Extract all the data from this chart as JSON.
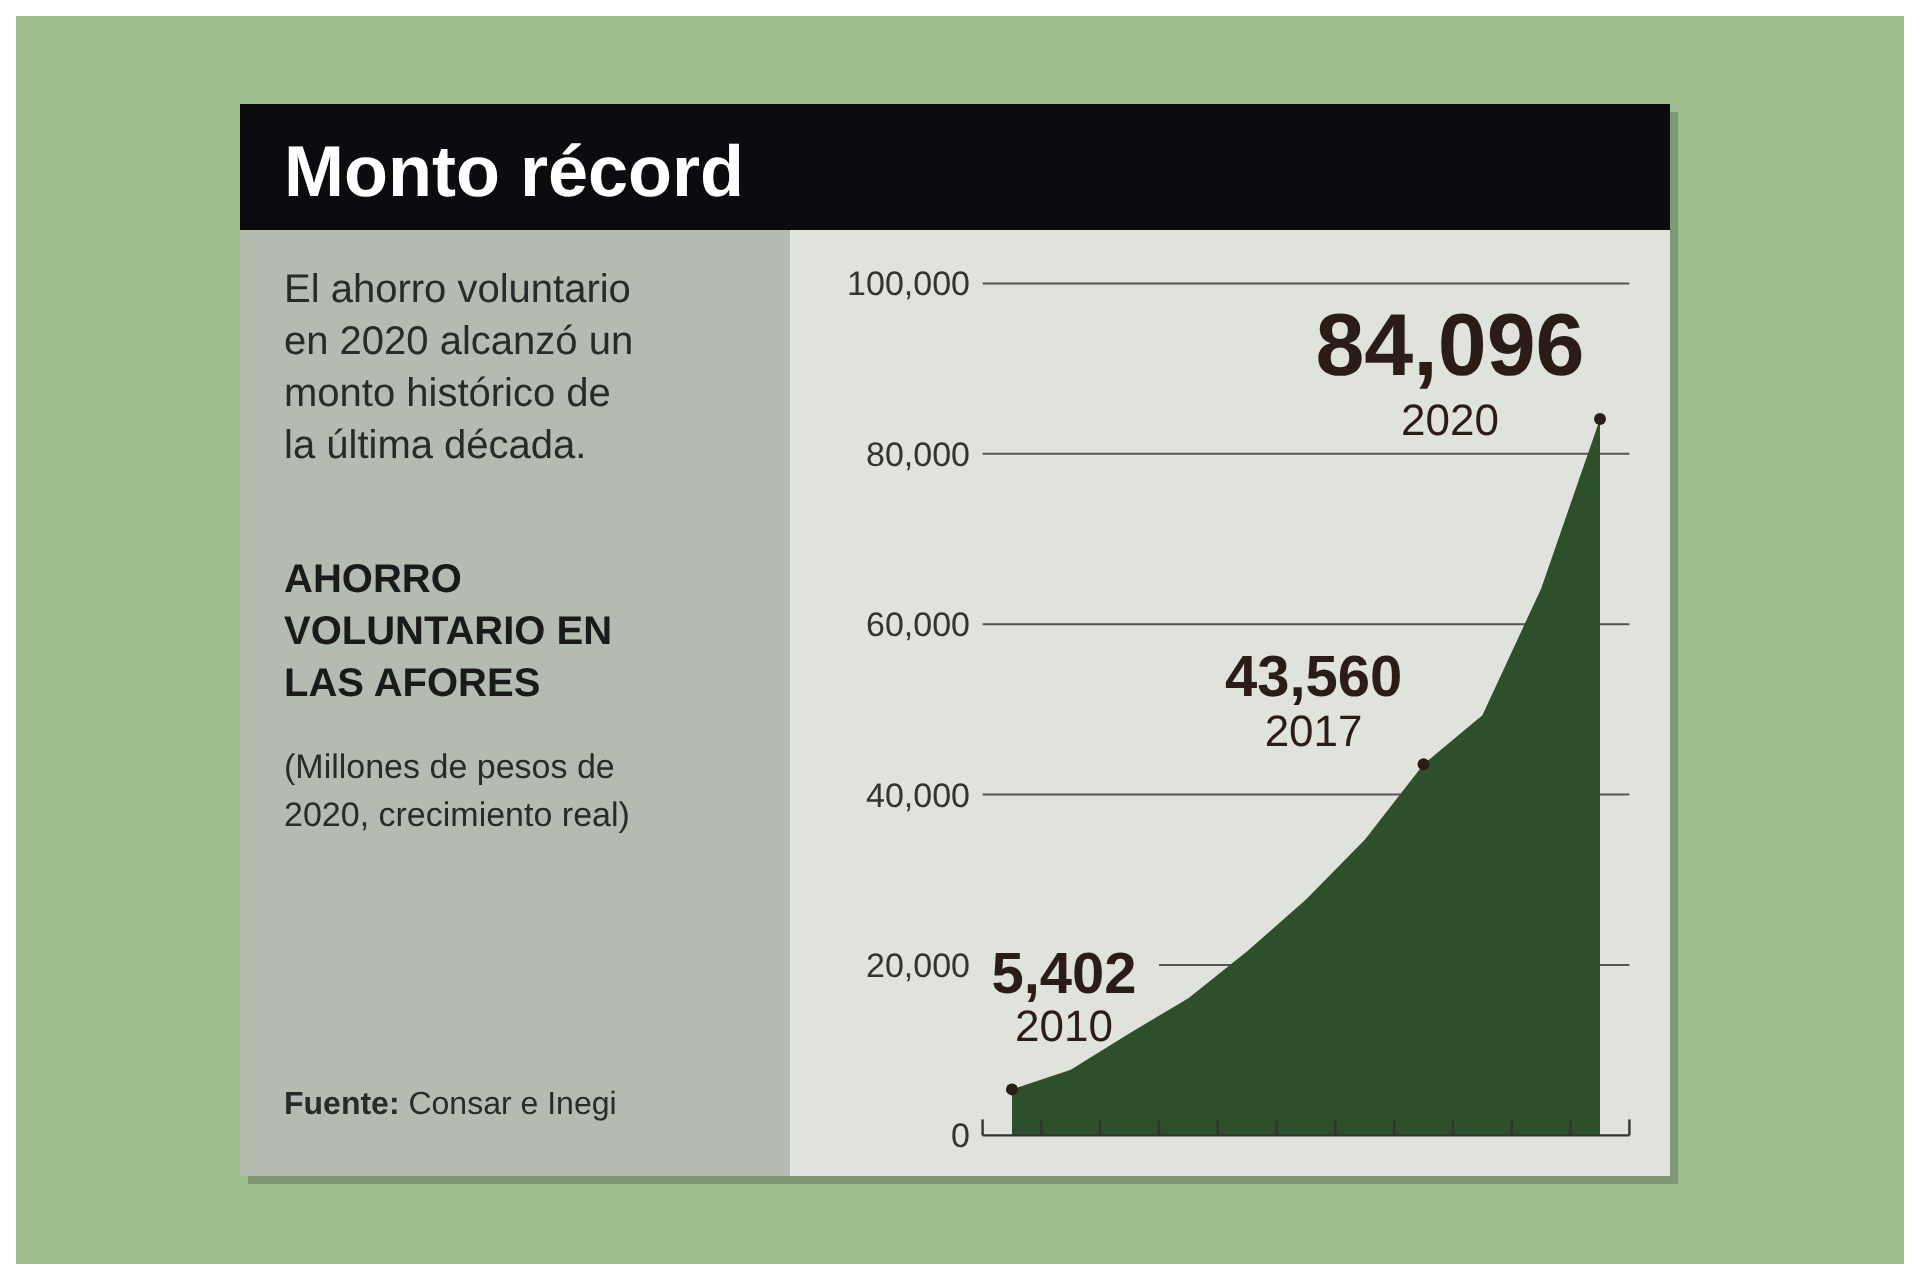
{
  "chart_data": {
    "type": "area",
    "title": "Monto récord",
    "subtitle": "El ahorro voluntario en 2020 alcanzó un monto histórico de la última década.",
    "annotations": [
      "AHORRO VOLUNTARIO EN LAS AFORES",
      "(Millones de pesos de 2020, crecimiento real)",
      "Fuente: Consar e Inegi",
      "2010",
      "2017",
      "2020"
    ],
    "categories": [
      null,
      null,
      null,
      null,
      null,
      null,
      null,
      null,
      null,
      null,
      null
    ],
    "series": [
      {
        "color": "#2d4f2a",
        "values": [
          5402,
          7700,
          12000,
          16100,
          21600,
          27700,
          34700,
          43560,
          49300,
          64200,
          84096
        ],
        "value_labels": [
          "5,402",
          null,
          null,
          null,
          null,
          null,
          null,
          "43,560",
          null,
          null,
          "84,096"
        ]
      }
    ],
    "ylim": [
      0,
      100000
    ],
    "yticks": [
      {
        "value": 0,
        "label": "0"
      },
      {
        "value": 20000,
        "label": "20,000"
      },
      {
        "value": 40000,
        "label": "40,000"
      },
      {
        "value": 60000,
        "label": "60,000"
      },
      {
        "value": 80000,
        "label": "80,000"
      },
      {
        "value": 100000,
        "label": "100,000"
      }
    ],
    "grid": "y"
  }
}
